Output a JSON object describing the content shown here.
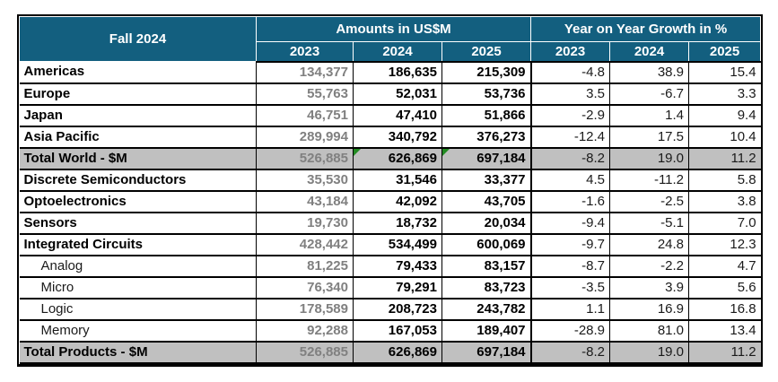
{
  "colors": {
    "header_bg": "#135F7F",
    "header_text": "#FFFFFF",
    "total_row_bg": "#C0C0C0",
    "muted_2023_text": "#808080",
    "value_text": "#000000",
    "border": "#000000",
    "green_flag": "#228B22"
  },
  "chart_data": {
    "type": "table",
    "title": "Fall 2024",
    "column_groups": [
      {
        "label": "Amounts in US$M",
        "columns": [
          "2023",
          "2024",
          "2025"
        ]
      },
      {
        "label": "Year on Year Growth in %",
        "columns": [
          "2023",
          "2024",
          "2025"
        ]
      }
    ],
    "rows": [
      {
        "label": "Americas",
        "indent": false,
        "is_total": false,
        "amounts": [
          "134,377",
          "186,635",
          "215,309"
        ],
        "growth": [
          "-4.8",
          "38.9",
          "15.4"
        ]
      },
      {
        "label": "Europe",
        "indent": false,
        "is_total": false,
        "amounts": [
          "55,763",
          "52,031",
          "53,736"
        ],
        "growth": [
          "3.5",
          "-6.7",
          "3.3"
        ]
      },
      {
        "label": "Japan",
        "indent": false,
        "is_total": false,
        "amounts": [
          "46,751",
          "47,410",
          "51,866"
        ],
        "growth": [
          "-2.9",
          "1.4",
          "9.4"
        ]
      },
      {
        "label": "Asia Pacific",
        "indent": false,
        "is_total": false,
        "amounts": [
          "289,994",
          "340,792",
          "376,273"
        ],
        "growth": [
          "-12.4",
          "17.5",
          "10.4"
        ]
      },
      {
        "label": "Total World - $M",
        "indent": false,
        "is_total": true,
        "amounts": [
          "526,885",
          "626,869",
          "697,184"
        ],
        "growth": [
          "-8.2",
          "19.0",
          "11.2"
        ],
        "green_flags": [
          false,
          true,
          true
        ]
      },
      {
        "label": "Discrete Semiconductors",
        "indent": false,
        "is_total": false,
        "amounts": [
          "35,530",
          "31,546",
          "33,377"
        ],
        "growth": [
          "4.5",
          "-11.2",
          "5.8"
        ]
      },
      {
        "label": "Optoelectronics",
        "indent": false,
        "is_total": false,
        "amounts": [
          "43,184",
          "42,092",
          "43,705"
        ],
        "growth": [
          "-1.6",
          "-2.5",
          "3.8"
        ]
      },
      {
        "label": "Sensors",
        "indent": false,
        "is_total": false,
        "amounts": [
          "19,730",
          "18,732",
          "20,034"
        ],
        "growth": [
          "-9.4",
          "-5.1",
          "7.0"
        ]
      },
      {
        "label": "Integrated Circuits",
        "indent": false,
        "is_total": false,
        "amounts": [
          "428,442",
          "534,499",
          "600,069"
        ],
        "growth": [
          "-9.7",
          "24.8",
          "12.3"
        ]
      },
      {
        "label": "Analog",
        "indent": true,
        "is_total": false,
        "amounts": [
          "81,225",
          "79,433",
          "83,157"
        ],
        "growth": [
          "-8.7",
          "-2.2",
          "4.7"
        ]
      },
      {
        "label": "Micro",
        "indent": true,
        "is_total": false,
        "amounts": [
          "76,340",
          "79,291",
          "83,723"
        ],
        "growth": [
          "-3.5",
          "3.9",
          "5.6"
        ]
      },
      {
        "label": "Logic",
        "indent": true,
        "is_total": false,
        "amounts": [
          "178,589",
          "208,723",
          "243,782"
        ],
        "growth": [
          "1.1",
          "16.9",
          "16.8"
        ]
      },
      {
        "label": "Memory",
        "indent": true,
        "is_total": false,
        "amounts": [
          "92,288",
          "167,053",
          "189,407"
        ],
        "growth": [
          "-28.9",
          "81.0",
          "13.4"
        ]
      },
      {
        "label": "Total Products - $M",
        "indent": false,
        "is_total": true,
        "amounts": [
          "526,885",
          "626,869",
          "697,184"
        ],
        "growth": [
          "-8.2",
          "19.0",
          "11.2"
        ]
      }
    ]
  }
}
